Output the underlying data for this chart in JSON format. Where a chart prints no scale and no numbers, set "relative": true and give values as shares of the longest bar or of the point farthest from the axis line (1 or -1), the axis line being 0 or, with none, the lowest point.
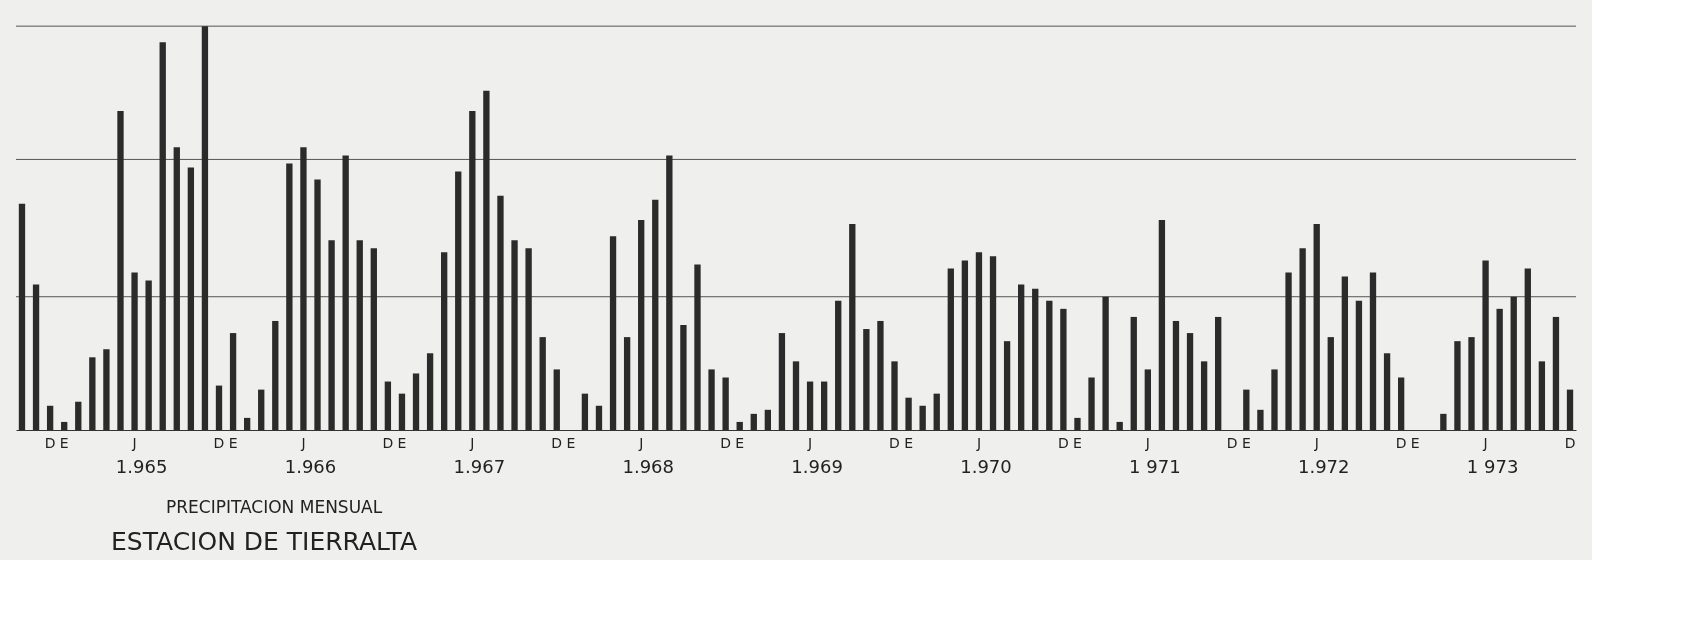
{
  "chart_data": {
    "type": "bar",
    "title": "ESTACION DE TIERRALTA",
    "subtitle": "PRECIPITACION MENSUAL",
    "categories": [
      null,
      null,
      "D",
      "E",
      null,
      null,
      null,
      null,
      "J",
      null,
      null,
      null,
      null,
      null,
      "D",
      "E",
      null,
      null,
      null,
      null,
      "J",
      null,
      null,
      null,
      null,
      null,
      "D",
      "E",
      null,
      null,
      null,
      null,
      "J",
      null,
      null,
      null,
      null,
      null,
      "D",
      "E",
      null,
      null,
      null,
      null,
      "J",
      null,
      null,
      null,
      null,
      null,
      "D",
      "E",
      null,
      null,
      null,
      null,
      "J",
      null,
      null,
      null,
      null,
      null,
      "D",
      "E",
      null,
      null,
      null,
      null,
      "J",
      null,
      null,
      null,
      null,
      null,
      "D",
      "E",
      null,
      null,
      null,
      null,
      "J",
      null,
      null,
      null,
      null,
      null,
      "D",
      "E",
      null,
      null,
      null,
      null,
      "J",
      null,
      null,
      null,
      null,
      null,
      "D",
      "E",
      null,
      null,
      null,
      null,
      "J",
      null,
      null,
      null,
      null,
      null,
      "D"
    ],
    "values": [
      0.56,
      0.36,
      0.06,
      0.02,
      0.07,
      0.18,
      0.2,
      0.79,
      0.39,
      0.37,
      0.96,
      0.7,
      0.65,
      1,
      0.11,
      0.24,
      0.03,
      0.1,
      0.27,
      0.66,
      0.7,
      0.62,
      0.47,
      0.68,
      0.47,
      0.45,
      0.12,
      0.09,
      0.14,
      0.19,
      0.44,
      0.64,
      0.79,
      0.84,
      0.58,
      0.47,
      0.45,
      0.23,
      0.15,
      null,
      0.09,
      0.06,
      0.48,
      0.23,
      0.52,
      0.57,
      0.68,
      0.26,
      0.41,
      0.15,
      0.13,
      0.02,
      0.04,
      0.05,
      0.24,
      0.17,
      0.12,
      0.12,
      0.32,
      0.51,
      0.25,
      0.27,
      0.17,
      0.08,
      0.06,
      0.09,
      0.4,
      0.42,
      0.44,
      0.43,
      0.22,
      0.36,
      0.35,
      0.32,
      0.3,
      0.03,
      0.13,
      0.33,
      0.02,
      0.28,
      0.15,
      0.52,
      0.27,
      0.24,
      0.17,
      0.28,
      null,
      0.1,
      0.05,
      0.15,
      0.39,
      0.45,
      0.51,
      0.23,
      0.38,
      0.32,
      0.39,
      0.19,
      0.13,
      null,
      null,
      0.04,
      0.22,
      0.23,
      0.42,
      0.3,
      0.33,
      0.4,
      0.17,
      0.28,
      0.1
    ],
    "color": "#2b2b2b",
    "relative": true,
    "ref_lines": [
      {
        "axis": "y",
        "value": 0.33
      },
      {
        "axis": "y",
        "value": 0.67
      },
      {
        "axis": "y",
        "value": 1
      }
    ],
    "annotations": [
      "1.965",
      "1.966",
      "1.967",
      "1.968",
      "1.969",
      "1.970",
      "1 971",
      "1.972",
      "1 973"
    ]
  }
}
